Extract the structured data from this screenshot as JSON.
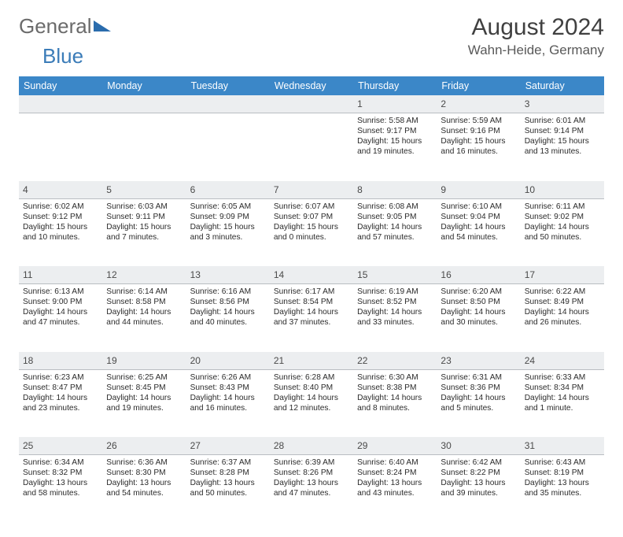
{
  "logo": {
    "general": "General",
    "blue": "Blue"
  },
  "title": "August 2024",
  "location": "Wahn-Heide, Germany",
  "colors": {
    "header_bg": "#3b87c8",
    "header_fg": "#ffffff",
    "daynum_bg": "#eceef0",
    "text": "#2b2b2b",
    "logo_gray": "#6b6b6b",
    "logo_blue": "#3b7cb8"
  },
  "weekdays": [
    "Sunday",
    "Monday",
    "Tuesday",
    "Wednesday",
    "Thursday",
    "Friday",
    "Saturday"
  ],
  "weeks": [
    [
      null,
      null,
      null,
      null,
      {
        "n": "1",
        "sr": "5:58 AM",
        "ss": "9:17 PM",
        "dl": "15 hours and 19 minutes."
      },
      {
        "n": "2",
        "sr": "5:59 AM",
        "ss": "9:16 PM",
        "dl": "15 hours and 16 minutes."
      },
      {
        "n": "3",
        "sr": "6:01 AM",
        "ss": "9:14 PM",
        "dl": "15 hours and 13 minutes."
      }
    ],
    [
      {
        "n": "4",
        "sr": "6:02 AM",
        "ss": "9:12 PM",
        "dl": "15 hours and 10 minutes."
      },
      {
        "n": "5",
        "sr": "6:03 AM",
        "ss": "9:11 PM",
        "dl": "15 hours and 7 minutes."
      },
      {
        "n": "6",
        "sr": "6:05 AM",
        "ss": "9:09 PM",
        "dl": "15 hours and 3 minutes."
      },
      {
        "n": "7",
        "sr": "6:07 AM",
        "ss": "9:07 PM",
        "dl": "15 hours and 0 minutes."
      },
      {
        "n": "8",
        "sr": "6:08 AM",
        "ss": "9:05 PM",
        "dl": "14 hours and 57 minutes."
      },
      {
        "n": "9",
        "sr": "6:10 AM",
        "ss": "9:04 PM",
        "dl": "14 hours and 54 minutes."
      },
      {
        "n": "10",
        "sr": "6:11 AM",
        "ss": "9:02 PM",
        "dl": "14 hours and 50 minutes."
      }
    ],
    [
      {
        "n": "11",
        "sr": "6:13 AM",
        "ss": "9:00 PM",
        "dl": "14 hours and 47 minutes."
      },
      {
        "n": "12",
        "sr": "6:14 AM",
        "ss": "8:58 PM",
        "dl": "14 hours and 44 minutes."
      },
      {
        "n": "13",
        "sr": "6:16 AM",
        "ss": "8:56 PM",
        "dl": "14 hours and 40 minutes."
      },
      {
        "n": "14",
        "sr": "6:17 AM",
        "ss": "8:54 PM",
        "dl": "14 hours and 37 minutes."
      },
      {
        "n": "15",
        "sr": "6:19 AM",
        "ss": "8:52 PM",
        "dl": "14 hours and 33 minutes."
      },
      {
        "n": "16",
        "sr": "6:20 AM",
        "ss": "8:50 PM",
        "dl": "14 hours and 30 minutes."
      },
      {
        "n": "17",
        "sr": "6:22 AM",
        "ss": "8:49 PM",
        "dl": "14 hours and 26 minutes."
      }
    ],
    [
      {
        "n": "18",
        "sr": "6:23 AM",
        "ss": "8:47 PM",
        "dl": "14 hours and 23 minutes."
      },
      {
        "n": "19",
        "sr": "6:25 AM",
        "ss": "8:45 PM",
        "dl": "14 hours and 19 minutes."
      },
      {
        "n": "20",
        "sr": "6:26 AM",
        "ss": "8:43 PM",
        "dl": "14 hours and 16 minutes."
      },
      {
        "n": "21",
        "sr": "6:28 AM",
        "ss": "8:40 PM",
        "dl": "14 hours and 12 minutes."
      },
      {
        "n": "22",
        "sr": "6:30 AM",
        "ss": "8:38 PM",
        "dl": "14 hours and 8 minutes."
      },
      {
        "n": "23",
        "sr": "6:31 AM",
        "ss": "8:36 PM",
        "dl": "14 hours and 5 minutes."
      },
      {
        "n": "24",
        "sr": "6:33 AM",
        "ss": "8:34 PM",
        "dl": "14 hours and 1 minute."
      }
    ],
    [
      {
        "n": "25",
        "sr": "6:34 AM",
        "ss": "8:32 PM",
        "dl": "13 hours and 58 minutes."
      },
      {
        "n": "26",
        "sr": "6:36 AM",
        "ss": "8:30 PM",
        "dl": "13 hours and 54 minutes."
      },
      {
        "n": "27",
        "sr": "6:37 AM",
        "ss": "8:28 PM",
        "dl": "13 hours and 50 minutes."
      },
      {
        "n": "28",
        "sr": "6:39 AM",
        "ss": "8:26 PM",
        "dl": "13 hours and 47 minutes."
      },
      {
        "n": "29",
        "sr": "6:40 AM",
        "ss": "8:24 PM",
        "dl": "13 hours and 43 minutes."
      },
      {
        "n": "30",
        "sr": "6:42 AM",
        "ss": "8:22 PM",
        "dl": "13 hours and 39 minutes."
      },
      {
        "n": "31",
        "sr": "6:43 AM",
        "ss": "8:19 PM",
        "dl": "13 hours and 35 minutes."
      }
    ]
  ],
  "labels": {
    "sunrise": "Sunrise:",
    "sunset": "Sunset:",
    "daylight": "Daylight:"
  }
}
